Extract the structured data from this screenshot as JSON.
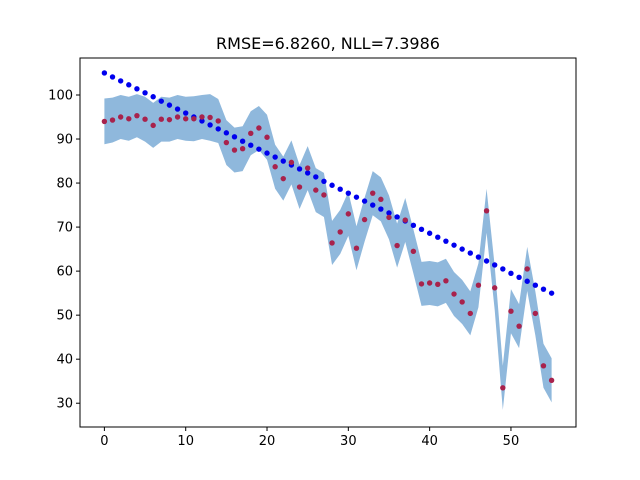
{
  "chart_data": {
    "type": "scatter",
    "title": "RMSE=6.8260, NLL=7.3986",
    "xlabel": "",
    "ylabel": "",
    "xlim": [
      -3,
      58
    ],
    "ylim": [
      24.6,
      108.4
    ],
    "x_ticks": [
      0,
      10,
      20,
      30,
      40,
      50
    ],
    "y_ticks": [
      30,
      40,
      50,
      60,
      70,
      80,
      90,
      100
    ],
    "grid": false,
    "colors": {
      "band": "#8fb8dc",
      "predicted": "#0000ee",
      "observed": "#a8224c"
    },
    "x": [
      0,
      1,
      2,
      3,
      4,
      5,
      6,
      7,
      8,
      9,
      10,
      11,
      12,
      13,
      14,
      15,
      16,
      17,
      18,
      19,
      20,
      21,
      22,
      23,
      24,
      25,
      26,
      27,
      28,
      29,
      30,
      31,
      32,
      33,
      34,
      35,
      36,
      37,
      38,
      39,
      40,
      41,
      42,
      43,
      44,
      45,
      46,
      47,
      48,
      49,
      50,
      51,
      52,
      53,
      54,
      55
    ],
    "series": [
      {
        "values": [
          105.0,
          104.1,
          103.2,
          102.3,
          101.4,
          100.5,
          99.6,
          98.6,
          97.7,
          96.8,
          95.9,
          95.0,
          94.1,
          93.2,
          92.3,
          91.4,
          90.5,
          89.5,
          88.6,
          87.7,
          86.8,
          85.9,
          85.0,
          84.1,
          83.2,
          82.3,
          81.4,
          80.4,
          79.5,
          78.6,
          77.7,
          76.8,
          75.9,
          75.0,
          74.1,
          73.2,
          72.3,
          71.4,
          70.4,
          69.5,
          68.6,
          67.7,
          66.8,
          65.9,
          65.0,
          64.1,
          63.2,
          62.3,
          61.4,
          60.5,
          59.5,
          58.6,
          57.7,
          56.8,
          55.9,
          55.0
        ]
      },
      {
        "values": [
          94.0,
          94.3,
          95.0,
          94.6,
          95.3,
          94.5,
          93.1,
          94.5,
          94.4,
          95.0,
          94.6,
          94.6,
          95.0,
          94.9,
          94.1,
          89.2,
          87.5,
          87.8,
          91.3,
          92.5,
          90.4,
          83.7,
          81.0,
          84.7,
          79.1,
          83.4,
          78.4,
          77.3,
          66.4,
          68.9,
          73.0,
          65.2,
          71.7,
          77.7,
          76.3,
          72.2,
          65.8,
          71.6,
          64.5,
          57.1,
          57.3,
          57.0,
          57.8,
          54.8,
          53.0,
          50.4,
          56.8,
          73.7,
          56.2,
          33.5,
          50.9,
          47.5,
          60.5,
          50.4,
          38.5,
          35.2
        ]
      }
    ],
    "band": {
      "upper": [
        99.2,
        99.4,
        100.0,
        99.6,
        100.2,
        99.6,
        98.2,
        99.6,
        99.4,
        100.0,
        99.6,
        99.7,
        100.0,
        100.2,
        99.1,
        94.3,
        92.6,
        92.9,
        96.3,
        97.5,
        95.5,
        88.7,
        86.0,
        89.7,
        84.1,
        88.4,
        83.4,
        82.3,
        71.4,
        73.9,
        78.0,
        70.2,
        76.7,
        82.7,
        81.3,
        77.2,
        70.8,
        76.6,
        69.5,
        62.1,
        62.3,
        62.0,
        62.8,
        59.8,
        58.0,
        55.4,
        61.8,
        78.7,
        61.2,
        38.5,
        55.9,
        52.5,
        65.5,
        55.4,
        43.5,
        40.2
      ],
      "lower": [
        88.8,
        89.2,
        90.0,
        89.6,
        90.4,
        89.4,
        88.0,
        89.4,
        89.4,
        90.0,
        89.6,
        89.5,
        90.0,
        89.6,
        89.1,
        84.1,
        82.4,
        82.7,
        86.3,
        87.5,
        85.3,
        78.7,
        76.0,
        79.7,
        74.1,
        78.4,
        73.4,
        72.3,
        61.4,
        63.9,
        68.0,
        60.2,
        66.7,
        72.7,
        71.3,
        67.2,
        60.8,
        66.6,
        59.5,
        52.1,
        52.3,
        52.0,
        52.8,
        49.8,
        48.0,
        45.4,
        51.8,
        68.7,
        51.2,
        28.5,
        45.9,
        42.5,
        55.5,
        45.4,
        33.5,
        30.2
      ]
    }
  }
}
